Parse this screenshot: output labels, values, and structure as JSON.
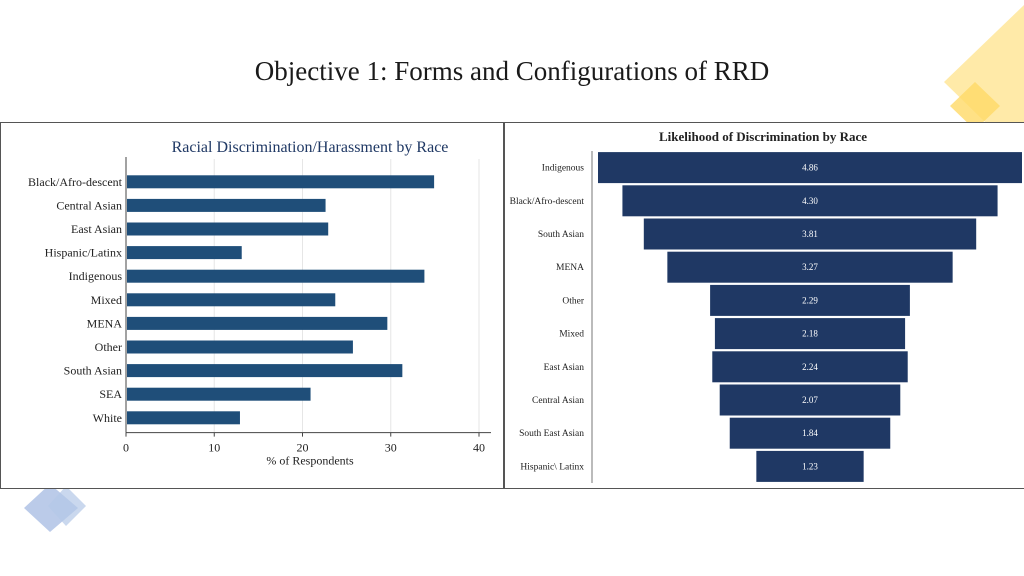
{
  "slide": {
    "title": "Objective 1: Forms and Configurations of RRD"
  },
  "colors": {
    "bar_left": "#1f4e79",
    "bar_right": "#1f3864",
    "accent_yellow": "#ffd966",
    "accent_blue": "#8ea9db",
    "title_left": "#1f3864"
  },
  "chart_data": [
    {
      "type": "bar",
      "orientation": "horizontal",
      "title": "Racial Discrimination/Harassment by Race",
      "xlabel": "% of Respondents",
      "ylabel": "",
      "xlim": [
        0,
        40
      ],
      "xticks": [
        0,
        10,
        20,
        30,
        40
      ],
      "grid": true,
      "categories": [
        "Black/Afro-descent",
        "Central Asian",
        "East Asian",
        "Hispanic/Latinx",
        "Indigenous",
        "Mixed",
        "MENA",
        "Other",
        "South Asian",
        "SEA",
        "White"
      ],
      "values": [
        34.8,
        22.5,
        22.8,
        13.0,
        33.7,
        23.6,
        29.5,
        25.6,
        31.2,
        20.8,
        12.8
      ]
    },
    {
      "type": "bar",
      "orientation": "funnel",
      "title": "Likelihood of Discrimination by Race",
      "categories": [
        "Indigenous",
        "Black/Afro-descent",
        "South Asian",
        "MENA",
        "Other",
        "Mixed",
        "East Asian",
        "Central Asian",
        "South East Asian",
        "Hispanic\\ Latinx"
      ],
      "values": [
        4.86,
        4.3,
        3.81,
        3.27,
        2.29,
        2.18,
        2.24,
        2.07,
        1.84,
        1.23
      ],
      "labels": [
        "4.86",
        "4.30",
        "3.81",
        "3.27",
        "2.29",
        "2.18",
        "2.24",
        "2.07",
        "1.84",
        "1.23"
      ]
    }
  ]
}
